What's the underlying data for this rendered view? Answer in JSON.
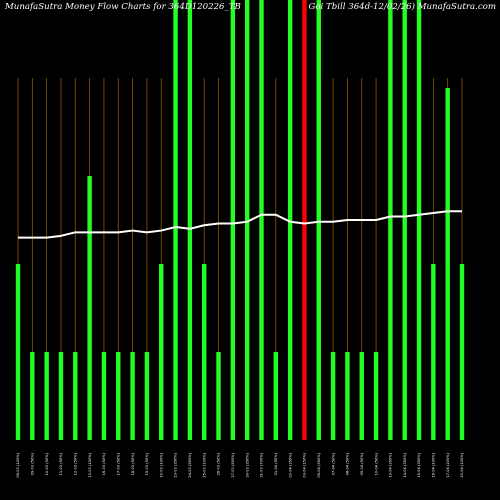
{
  "chart_data": {
    "type": "bar",
    "title": "MunafaSutra  Money Flow  Charts for 364D120226_TB",
    "subtitle": "Goi Tbill 364d-12/02/26) MunafaSutra.com",
    "colors": {
      "background": "#000000",
      "up": "#22ff22",
      "down": "#ff0000",
      "line": "#ffffff",
      "grid": "#8b5a00"
    },
    "ylim": [
      0,
      100
    ],
    "categories": [
      "06-03 (100%)",
      "09-03 (50%)",
      "10-03 (50%)",
      "11-03 (50%)",
      "12-03 (50%)",
      "13-03 (150%)",
      "16-03 (50%)",
      "17-03 (50%)",
      "18-03 (50%)",
      "19-03 (50%)",
      "20-03 (100%)",
      "23-03 (350%)",
      "24-03 (550%)",
      "25-03 (100%)",
      "26-03 (50%)",
      "27-03 (500%)",
      "30-03 (350%)",
      "31-03 (700%)",
      "01-04 (50%)",
      "02-04 (350%)",
      "03-04 (150%)",
      "06-04 (350%)",
      "07-04 (50%)",
      "08-04 (50%)",
      "09-04 (50%)",
      "10-04 (50%)",
      "13-04 (350%)",
      "14-04 (350%)",
      "15-04 (350%)",
      "16-04 (100%)",
      "17-04 (200%)",
      "20-04 (100%)"
    ],
    "values": [
      40,
      20,
      20,
      20,
      20,
      60,
      20,
      20,
      20,
      20,
      40,
      100,
      100,
      40,
      20,
      100,
      100,
      100,
      20,
      100,
      100,
      100,
      20,
      20,
      20,
      20,
      100,
      100,
      100,
      40,
      80,
      40
    ],
    "directions": [
      "up",
      "up",
      "up",
      "up",
      "up",
      "up",
      "up",
      "up",
      "up",
      "up",
      "up",
      "up",
      "up",
      "up",
      "up",
      "up",
      "up",
      "up",
      "up",
      "up",
      "down",
      "up",
      "up",
      "up",
      "up",
      "up",
      "up",
      "up",
      "up",
      "up",
      "up",
      "up"
    ],
    "line_values": [
      46,
      46,
      46,
      46.4,
      47.2,
      47.2,
      47.2,
      47.2,
      47.6,
      47.2,
      47.6,
      48.4,
      48,
      48.8,
      49.2,
      49.2,
      49.6,
      51.2,
      51.2,
      49.6,
      49.2,
      49.6,
      49.6,
      50,
      50,
      50,
      50.8,
      50.8,
      51.2,
      51.6,
      52,
      52
    ]
  }
}
